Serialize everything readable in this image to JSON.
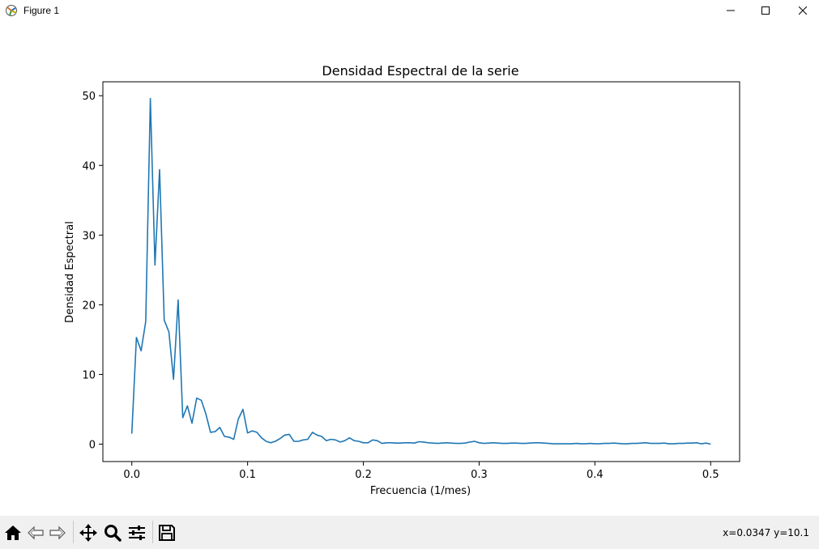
{
  "window": {
    "title": "Figure 1",
    "controls": [
      "minimize",
      "maximize",
      "close"
    ]
  },
  "toolbar": {
    "buttons": [
      {
        "name": "home",
        "icon": "home-icon"
      },
      {
        "name": "back",
        "icon": "back-arrow-icon"
      },
      {
        "name": "forward",
        "icon": "forward-arrow-icon"
      },
      {
        "name": "pan",
        "icon": "move-icon"
      },
      {
        "name": "zoom",
        "icon": "zoom-icon"
      },
      {
        "name": "configure-subplots",
        "icon": "sliders-icon"
      },
      {
        "name": "save",
        "icon": "save-icon"
      }
    ],
    "coords": "x=0.0347 y=10.1"
  },
  "chart_data": {
    "type": "line",
    "title": "Densidad Espectral de la serie",
    "xlabel": "Frecuencia (1/mes)",
    "ylabel": "Densidad Espectral",
    "xlim": [
      -0.025,
      0.525
    ],
    "ylim": [
      -2.5,
      52.0
    ],
    "xticks": [
      0.0,
      0.1,
      0.2,
      0.3,
      0.4,
      0.5
    ],
    "xtick_labels": [
      "0.0",
      "0.1",
      "0.2",
      "0.3",
      "0.4",
      "0.5"
    ],
    "yticks": [
      0,
      10,
      20,
      30,
      40,
      50
    ],
    "ytick_labels": [
      "0",
      "10",
      "20",
      "30",
      "40",
      "50"
    ],
    "grid": false,
    "line_color": "#1f77b4",
    "x": [
      0.0,
      0.004,
      0.008,
      0.012,
      0.016,
      0.02,
      0.024,
      0.028,
      0.032,
      0.036,
      0.04,
      0.044,
      0.048,
      0.052,
      0.056,
      0.06,
      0.064,
      0.068,
      0.072,
      0.076,
      0.08,
      0.084,
      0.088,
      0.092,
      0.096,
      0.1,
      0.104,
      0.108,
      0.112,
      0.116,
      0.12,
      0.124,
      0.128,
      0.132,
      0.136,
      0.14,
      0.144,
      0.148,
      0.152,
      0.156,
      0.16,
      0.164,
      0.168,
      0.172,
      0.176,
      0.18,
      0.184,
      0.188,
      0.192,
      0.196,
      0.2,
      0.204,
      0.208,
      0.212,
      0.216,
      0.22,
      0.224,
      0.228,
      0.232,
      0.236,
      0.24,
      0.244,
      0.248,
      0.252,
      0.256,
      0.26,
      0.264,
      0.268,
      0.272,
      0.276,
      0.28,
      0.284,
      0.288,
      0.292,
      0.296,
      0.3,
      0.304,
      0.308,
      0.312,
      0.316,
      0.32,
      0.324,
      0.328,
      0.332,
      0.336,
      0.34,
      0.344,
      0.348,
      0.352,
      0.356,
      0.36,
      0.364,
      0.368,
      0.372,
      0.376,
      0.38,
      0.384,
      0.388,
      0.392,
      0.396,
      0.4,
      0.404,
      0.408,
      0.412,
      0.416,
      0.42,
      0.424,
      0.428,
      0.432,
      0.436,
      0.44,
      0.444,
      0.448,
      0.452,
      0.456,
      0.46,
      0.464,
      0.468,
      0.472,
      0.476,
      0.48,
      0.484,
      0.488,
      0.492,
      0.496,
      0.5
    ],
    "y": [
      1.5,
      15.3,
      13.4,
      17.6,
      49.6,
      25.7,
      39.4,
      17.8,
      16.1,
      9.3,
      20.7,
      3.8,
      5.5,
      3.0,
      6.6,
      6.3,
      4.3,
      1.7,
      1.8,
      2.4,
      1.1,
      1.0,
      0.7,
      3.6,
      5.0,
      1.6,
      1.9,
      1.7,
      0.9,
      0.4,
      0.2,
      0.4,
      0.8,
      1.3,
      1.4,
      0.4,
      0.4,
      0.6,
      0.7,
      1.7,
      1.3,
      1.1,
      0.5,
      0.7,
      0.6,
      0.3,
      0.5,
      0.9,
      0.5,
      0.4,
      0.2,
      0.2,
      0.6,
      0.5,
      0.1,
      0.2,
      0.2,
      0.15,
      0.15,
      0.2,
      0.2,
      0.15,
      0.35,
      0.3,
      0.2,
      0.15,
      0.1,
      0.15,
      0.2,
      0.15,
      0.1,
      0.1,
      0.15,
      0.3,
      0.4,
      0.2,
      0.1,
      0.15,
      0.2,
      0.15,
      0.1,
      0.1,
      0.15,
      0.15,
      0.1,
      0.1,
      0.15,
      0.2,
      0.2,
      0.15,
      0.1,
      0.05,
      0.05,
      0.05,
      0.05,
      0.05,
      0.1,
      0.05,
      0.05,
      0.1,
      0.05,
      0.05,
      0.1,
      0.1,
      0.15,
      0.1,
      0.05,
      0.05,
      0.1,
      0.1,
      0.15,
      0.2,
      0.1,
      0.1,
      0.1,
      0.15,
      0.05,
      0.05,
      0.1,
      0.1,
      0.15,
      0.15,
      0.2,
      0.05,
      0.15,
      0.0
    ]
  }
}
